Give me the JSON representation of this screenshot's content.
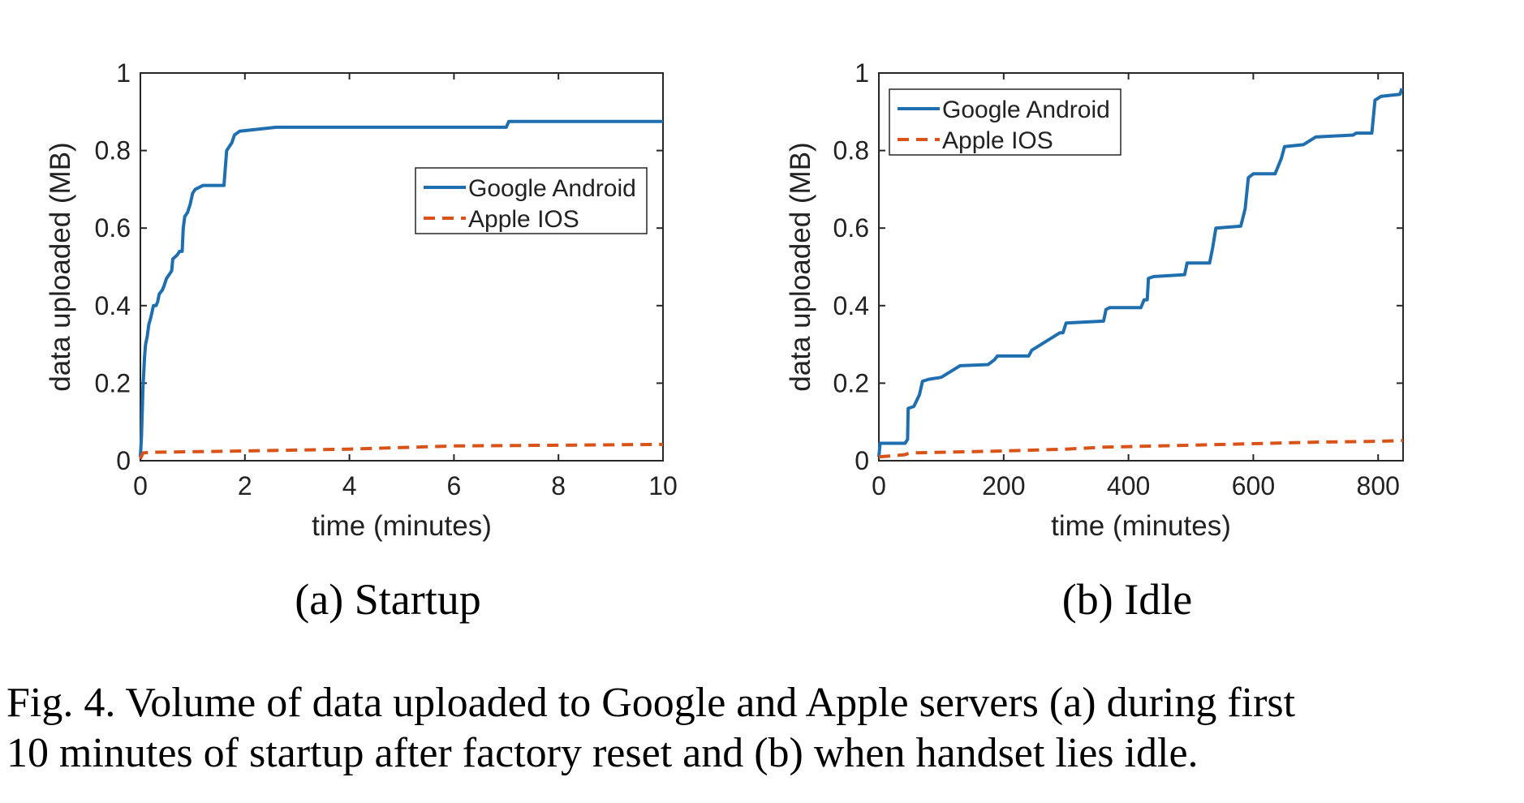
{
  "chart_data": [
    {
      "type": "line",
      "subcaption": "(a)  Startup",
      "xlabel": "time (minutes)",
      "ylabel": "data uploaded (MB)",
      "xlim": [
        0,
        10
      ],
      "ylim": [
        0,
        1
      ],
      "xticks": [
        0,
        2,
        4,
        6,
        8,
        10
      ],
      "yticks": [
        0,
        0.2,
        0.4,
        0.6,
        0.8,
        1
      ],
      "xtick_labels": [
        "0",
        "2",
        "4",
        "6",
        "8",
        "10"
      ],
      "ytick_labels": [
        "0",
        "0.2",
        "0.4",
        "0.6",
        "0.8",
        "1"
      ],
      "legend": {
        "position": "upper-right"
      },
      "grid": false,
      "series": [
        {
          "name": "Google Android",
          "color": "#1f6fb0",
          "style": "solid",
          "points": [
            [
              0,
              0.01
            ],
            [
              0.02,
              0.06
            ],
            [
              0.05,
              0.19
            ],
            [
              0.08,
              0.27
            ],
            [
              0.1,
              0.3
            ],
            [
              0.13,
              0.32
            ],
            [
              0.16,
              0.35
            ],
            [
              0.2,
              0.37
            ],
            [
              0.25,
              0.4
            ],
            [
              0.3,
              0.4
            ],
            [
              0.33,
              0.41
            ],
            [
              0.36,
              0.43
            ],
            [
              0.42,
              0.44
            ],
            [
              0.45,
              0.45
            ],
            [
              0.5,
              0.47
            ],
            [
              0.55,
              0.48
            ],
            [
              0.6,
              0.49
            ],
            [
              0.62,
              0.52
            ],
            [
              0.7,
              0.53
            ],
            [
              0.75,
              0.54
            ],
            [
              0.8,
              0.54
            ],
            [
              0.82,
              0.6
            ],
            [
              0.85,
              0.63
            ],
            [
              0.9,
              0.64
            ],
            [
              0.95,
              0.66
            ],
            [
              1.0,
              0.69
            ],
            [
              1.05,
              0.7
            ],
            [
              1.2,
              0.71
            ],
            [
              1.6,
              0.71
            ],
            [
              1.65,
              0.8
            ],
            [
              1.75,
              0.82
            ],
            [
              1.8,
              0.84
            ],
            [
              1.9,
              0.85
            ],
            [
              2.6,
              0.86
            ],
            [
              6.6,
              0.86
            ],
            [
              7.0,
              0.86
            ],
            [
              7.05,
              0.875
            ],
            [
              10,
              0.875
            ]
          ]
        },
        {
          "name": "Apple IOS",
          "color": "#d95319",
          "style": "dashed",
          "points": [
            [
              0,
              0.005
            ],
            [
              0.05,
              0.02
            ],
            [
              0.3,
              0.022
            ],
            [
              2,
              0.025
            ],
            [
              4,
              0.03
            ],
            [
              6,
              0.038
            ],
            [
              8,
              0.04
            ],
            [
              10,
              0.042
            ]
          ]
        }
      ]
    },
    {
      "type": "line",
      "subcaption": "(b)  Idle",
      "xlabel": "time (minutes)",
      "ylabel": "data uploaded (MB)",
      "xlim": [
        0,
        840
      ],
      "ylim": [
        0,
        1
      ],
      "xticks": [
        0,
        200,
        400,
        600,
        800
      ],
      "yticks": [
        0,
        0.2,
        0.4,
        0.6,
        0.8,
        1
      ],
      "xtick_labels": [
        "0",
        "200",
        "400",
        "600",
        "800"
      ],
      "ytick_labels": [
        "0",
        "0.2",
        "0.4",
        "0.6",
        "0.8",
        "1"
      ],
      "legend": {
        "position": "upper-left"
      },
      "grid": false,
      "series": [
        {
          "name": "Google Android",
          "color": "#1f6fb0",
          "style": "solid",
          "points": [
            [
              0,
              0.01
            ],
            [
              2,
              0.045
            ],
            [
              42,
              0.045
            ],
            [
              46,
              0.055
            ],
            [
              47,
              0.135
            ],
            [
              56,
              0.14
            ],
            [
              65,
              0.17
            ],
            [
              70,
              0.205
            ],
            [
              80,
              0.21
            ],
            [
              100,
              0.215
            ],
            [
              120,
              0.235
            ],
            [
              130,
              0.245
            ],
            [
              175,
              0.248
            ],
            [
              185,
              0.26
            ],
            [
              190,
              0.27
            ],
            [
              240,
              0.27
            ],
            [
              245,
              0.285
            ],
            [
              290,
              0.33
            ],
            [
              295,
              0.33
            ],
            [
              300,
              0.355
            ],
            [
              360,
              0.36
            ],
            [
              364,
              0.39
            ],
            [
              370,
              0.395
            ],
            [
              420,
              0.395
            ],
            [
              425,
              0.415
            ],
            [
              430,
              0.415
            ],
            [
              432,
              0.47
            ],
            [
              440,
              0.475
            ],
            [
              490,
              0.48
            ],
            [
              494,
              0.51
            ],
            [
              530,
              0.51
            ],
            [
              535,
              0.55
            ],
            [
              540,
              0.6
            ],
            [
              580,
              0.605
            ],
            [
              587,
              0.65
            ],
            [
              592,
              0.73
            ],
            [
              600,
              0.74
            ],
            [
              635,
              0.74
            ],
            [
              645,
              0.78
            ],
            [
              650,
              0.81
            ],
            [
              680,
              0.815
            ],
            [
              700,
              0.835
            ],
            [
              760,
              0.84
            ],
            [
              765,
              0.845
            ],
            [
              790,
              0.845
            ],
            [
              795,
              0.93
            ],
            [
              805,
              0.94
            ],
            [
              835,
              0.945
            ],
            [
              838,
              0.96
            ]
          ]
        },
        {
          "name": "Apple IOS",
          "color": "#d95319",
          "style": "dashed",
          "points": [
            [
              0,
              0.01
            ],
            [
              40,
              0.015
            ],
            [
              50,
              0.02
            ],
            [
              200,
              0.025
            ],
            [
              300,
              0.03
            ],
            [
              360,
              0.035
            ],
            [
              500,
              0.04
            ],
            [
              700,
              0.048
            ],
            [
              800,
              0.05
            ],
            [
              840,
              0.052
            ]
          ]
        }
      ]
    }
  ],
  "caption": {
    "line1": "Fig. 4.  Volume of data uploaded to Google and Apple servers (a) during first",
    "line2": "10 minutes of startup after factory reset and (b) when handset lies idle."
  }
}
